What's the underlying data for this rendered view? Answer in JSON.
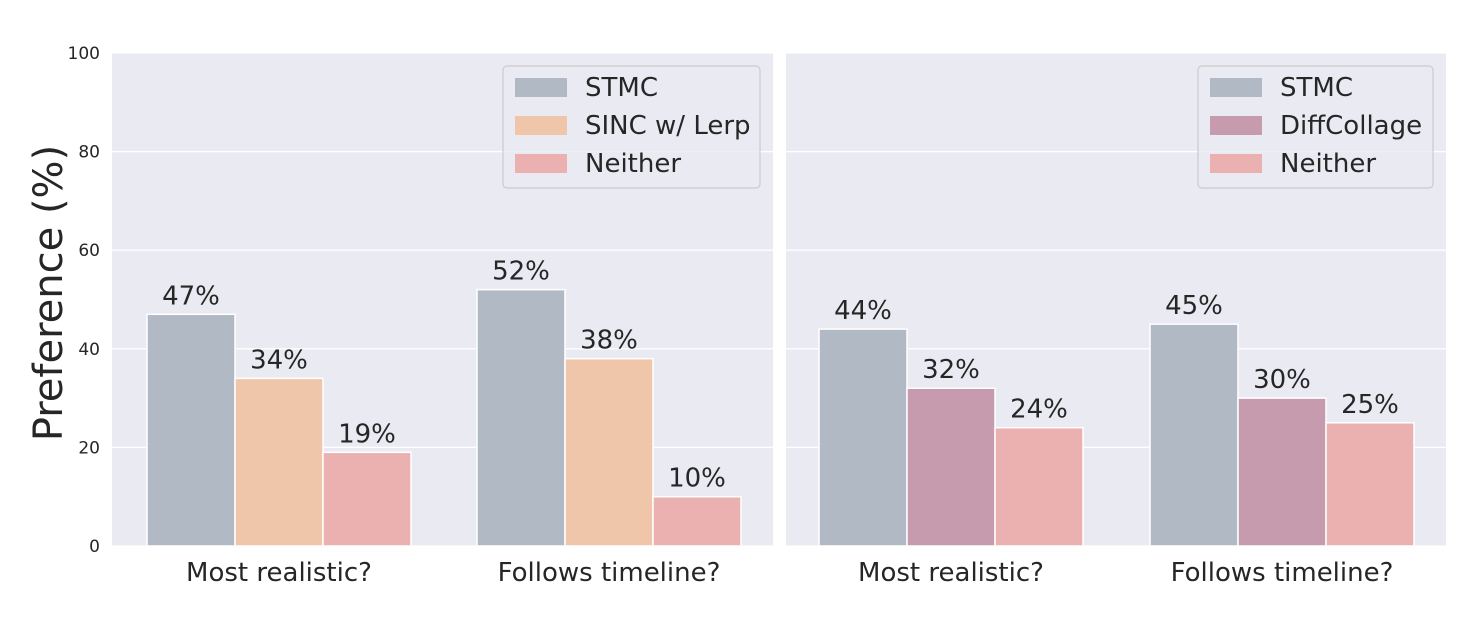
{
  "ylabel": "Preference (%)",
  "colors": {
    "plot_bg": "#eaeaf2",
    "grid": "#ffffff",
    "stmc": "#b1b9c5",
    "sinc": "#f0c6ab",
    "diffcollage": "#c69bad",
    "neither": "#ebb1b0"
  },
  "chart_data": [
    {
      "type": "bar",
      "categories": [
        "Most realistic?",
        "Follows timeline?"
      ],
      "series": [
        {
          "name": "STMC",
          "values": [
            47,
            52
          ],
          "labels": [
            "47%",
            "52%"
          ],
          "color": "#b1b9c5"
        },
        {
          "name": "SINC w/ Lerp",
          "values": [
            34,
            38
          ],
          "labels": [
            "34%",
            "38%"
          ],
          "color": "#f0c6ab"
        },
        {
          "name": "Neither",
          "values": [
            19,
            10
          ],
          "labels": [
            "19%",
            "10%"
          ],
          "color": "#ebb1b0"
        }
      ],
      "yticks": [
        "0",
        "20",
        "40",
        "60",
        "80",
        "100"
      ],
      "ylim": [
        0,
        100
      ],
      "grid": true,
      "legend": "top-right"
    },
    {
      "type": "bar",
      "categories": [
        "Most realistic?",
        "Follows timeline?"
      ],
      "series": [
        {
          "name": "STMC",
          "values": [
            44,
            45
          ],
          "labels": [
            "44%",
            "45%"
          ],
          "color": "#b1b9c5"
        },
        {
          "name": "DiffCollage",
          "values": [
            32,
            30
          ],
          "labels": [
            "32%",
            "30%"
          ],
          "color": "#c69bad"
        },
        {
          "name": "Neither",
          "values": [
            24,
            25
          ],
          "labels": [
            "24%",
            "25%"
          ],
          "color": "#ebb1b0"
        }
      ],
      "ylim": [
        0,
        100
      ],
      "grid": true,
      "legend": "top-right"
    }
  ]
}
